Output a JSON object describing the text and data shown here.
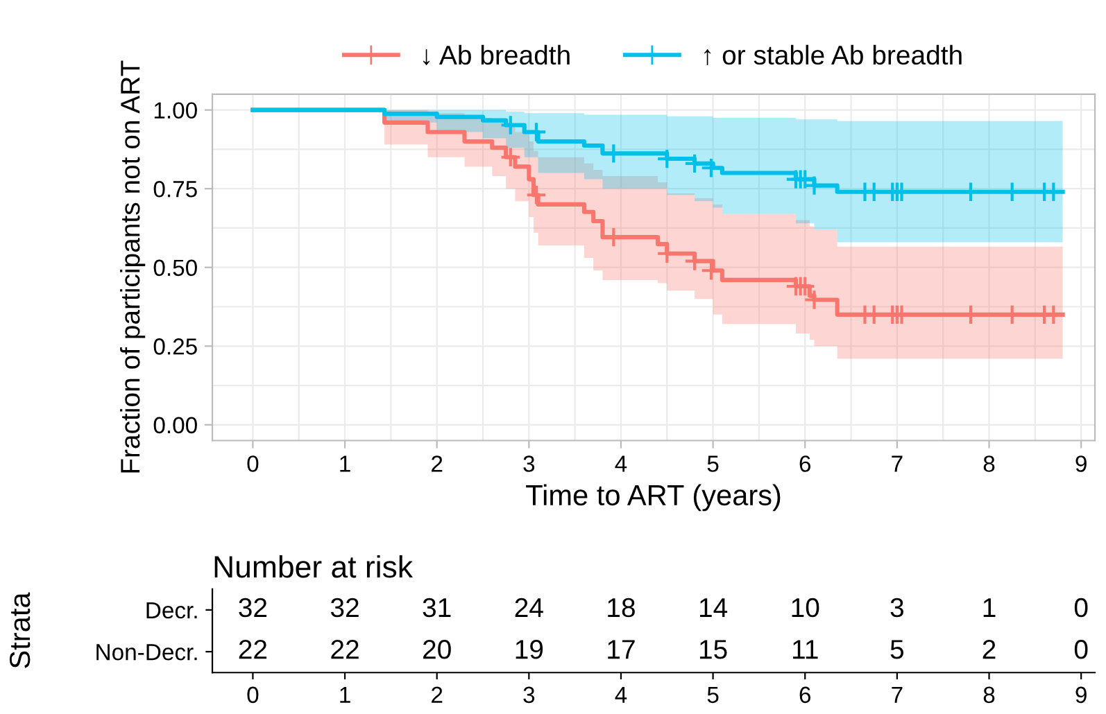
{
  "chart_data": [
    {
      "type": "step",
      "xlabel": "Time to ART (years)",
      "ylabel": "Fraction of participants not on ART",
      "xlim": [
        -0.44,
        9.15
      ],
      "ylim": [
        -0.05,
        1.05
      ],
      "xticks": [
        0,
        1,
        2,
        3,
        4,
        5,
        6,
        7,
        8,
        9
      ],
      "yticks": [
        {
          "value": 0,
          "label": "0.00"
        },
        {
          "value": 0.25,
          "label": "0.25"
        },
        {
          "value": 0.5,
          "label": "0.50"
        },
        {
          "value": 0.75,
          "label": "0.75"
        },
        {
          "value": 1,
          "label": "1.00"
        }
      ],
      "grid": true,
      "legend": "top",
      "series": [
        {
          "name": "↓ Ab breadth",
          "color": "#f8766d",
          "x": [
            0,
            1.43,
            1.9,
            2.3,
            2.6,
            2.75,
            2.85,
            3.0,
            3.05,
            3.1,
            3.6,
            3.7,
            3.8,
            4.4,
            4.5,
            4.8,
            5.0,
            5.1,
            5.9,
            6.05,
            6.1,
            6.35,
            8.8
          ],
          "values": [
            1,
            0.96,
            0.93,
            0.9,
            0.88,
            0.85,
            0.82,
            0.78,
            0.73,
            0.7,
            0.676,
            0.647,
            0.596,
            0.574,
            0.544,
            0.52,
            0.49,
            0.46,
            0.44,
            0.41,
            0.397,
            0.35,
            0.35
          ],
          "upper": [
            1,
            1,
            0.99,
            0.975,
            0.965,
            0.95,
            0.93,
            0.9,
            0.87,
            0.85,
            0.83,
            0.81,
            0.79,
            0.77,
            0.735,
            0.72,
            0.7,
            0.67,
            0.65,
            0.63,
            0.62,
            0.566,
            0.566
          ],
          "lower": [
            1,
            0.89,
            0.85,
            0.82,
            0.79,
            0.75,
            0.71,
            0.66,
            0.61,
            0.57,
            0.53,
            0.49,
            0.46,
            0.45,
            0.426,
            0.4,
            0.35,
            0.32,
            0.29,
            0.27,
            0.25,
            0.21,
            0.21
          ]
        },
        {
          "name": "↑ or stable Ab breadth",
          "color": "#00bfe8",
          "x": [
            0,
            1.43,
            2.0,
            2.5,
            2.75,
            2.95,
            3.1,
            3.6,
            3.8,
            4.5,
            4.8,
            5.0,
            5.1,
            5.9,
            6.1,
            6.35,
            8.8
          ],
          "values": [
            1,
            0.988,
            0.978,
            0.967,
            0.952,
            0.93,
            0.9,
            0.887,
            0.862,
            0.845,
            0.83,
            0.816,
            0.8,
            0.78,
            0.76,
            0.74,
            0.74
          ],
          "upper": [
            1,
            1,
            1,
            1,
            0.995,
            0.99,
            0.99,
            0.985,
            0.985,
            0.98,
            0.98,
            0.975,
            0.975,
            0.97,
            0.97,
            0.965,
            0.965
          ],
          "lower": [
            1,
            0.96,
            0.93,
            0.91,
            0.88,
            0.85,
            0.8,
            0.78,
            0.75,
            0.73,
            0.71,
            0.69,
            0.67,
            0.64,
            0.62,
            0.58,
            0.58
          ]
        },
        {
          "type": "scatter",
          "marker": "cross",
          "color": "#f8766d",
          "x": [
            2.8,
            3.08,
            3.92,
            4.5,
            4.8,
            4.98,
            5.9,
            5.95,
            6.0,
            6.1,
            6.65,
            6.75,
            6.95,
            7.0,
            7.05,
            7.8,
            8.25,
            8.6,
            8.7
          ],
          "values": [
            0.85,
            0.73,
            0.596,
            0.544,
            0.52,
            0.49,
            0.44,
            0.44,
            0.44,
            0.397,
            0.35,
            0.35,
            0.35,
            0.35,
            0.35,
            0.35,
            0.35,
            0.35,
            0.35
          ]
        },
        {
          "type": "scatter",
          "marker": "cross",
          "color": "#00bfe8",
          "x": [
            2.8,
            3.08,
            3.92,
            4.5,
            4.8,
            4.98,
            5.9,
            5.95,
            6.0,
            6.1,
            6.65,
            6.75,
            6.95,
            7.0,
            7.05,
            7.8,
            8.25,
            8.6,
            8.7
          ],
          "values": [
            0.952,
            0.93,
            0.862,
            0.845,
            0.83,
            0.816,
            0.78,
            0.78,
            0.78,
            0.76,
            0.74,
            0.74,
            0.74,
            0.74,
            0.74,
            0.74,
            0.74,
            0.74,
            0.74
          ]
        }
      ]
    },
    {
      "type": "heatmap",
      "title": "Number at risk",
      "ylabel": "Strata",
      "categories": [
        "0",
        "1",
        "2",
        "3",
        "4",
        "5",
        "6",
        "7",
        "8",
        "9"
      ],
      "y_categories": [
        "Decr.",
        "Non-Decr."
      ],
      "data_labels": true,
      "cells": [
        [
          32,
          32,
          31,
          24,
          18,
          14,
          10,
          3,
          1,
          0
        ],
        [
          22,
          22,
          20,
          19,
          17,
          15,
          11,
          5,
          2,
          0
        ]
      ]
    }
  ]
}
